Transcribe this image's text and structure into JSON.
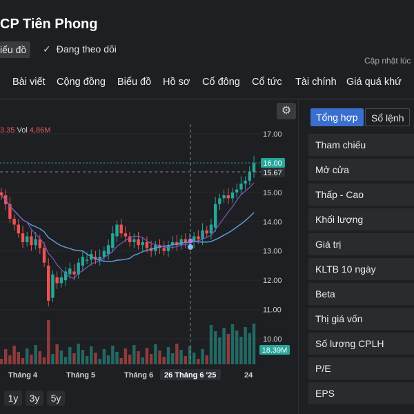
{
  "header": {
    "title": "CP Tiên Phong",
    "chart_button": "iểu đồ",
    "follow_label": "Đang theo dõi",
    "updated_label": "Cập nhật lúc"
  },
  "nav": [
    "Bài viết",
    "Cộng đồng",
    "Biểu đồ",
    "Hồ sơ",
    "Cổ đông",
    "Cổ tức",
    "Tài chính",
    "Giá quá khứ"
  ],
  "chart": {
    "legend_price": "3.35",
    "legend_vol_label": "Vol",
    "legend_vol_value": "4,86M",
    "price_ticks": [
      "17.00",
      "16.00",
      "15.00",
      "14.00",
      "13.00",
      "12.00",
      "11.00",
      "10.00"
    ],
    "last_price_tag": "16.00",
    "crosshair_price_tag": "15.67",
    "volume_tag": "18.39M",
    "x_labels": [
      "Tháng 4",
      "Tháng 5",
      "Tháng 6",
      "26 Tháng 6 '25",
      "24"
    ],
    "range_buttons": [
      "1y",
      "3y",
      "5y"
    ],
    "colors": {
      "up": "#26a69a",
      "down": "#ef5350",
      "ma_fast": "#7e57c2",
      "ma_slow": "#5b9bd5",
      "last_tag": "#26a69a"
    }
  },
  "side": {
    "tab_active": "Tổng hợp",
    "tab_other": "Sổ lệnh",
    "rows": [
      "Tham chiếu",
      "Mở cửa",
      "Thấp - Cao",
      "Khối lượng",
      "Giá trị",
      "KLTB 10 ngày",
      "Beta",
      "Thị giá vốn",
      "Số lượng CPLH",
      "P/E",
      "EPS"
    ]
  },
  "chart_data": {
    "type": "candlestick",
    "series": [
      {
        "values": [
          14.9,
          13.9,
          13.2,
          12.0,
          12.8,
          12.2,
          12.6,
          12.9,
          13.6,
          13.5,
          13.3,
          13.3,
          13.1,
          13.2,
          13.3,
          13.35,
          13.6,
          14.6,
          14.9,
          15.2,
          15.6,
          16.0
        ]
      }
    ],
    "ylim": [
      9.9,
      17.3
    ]
  }
}
